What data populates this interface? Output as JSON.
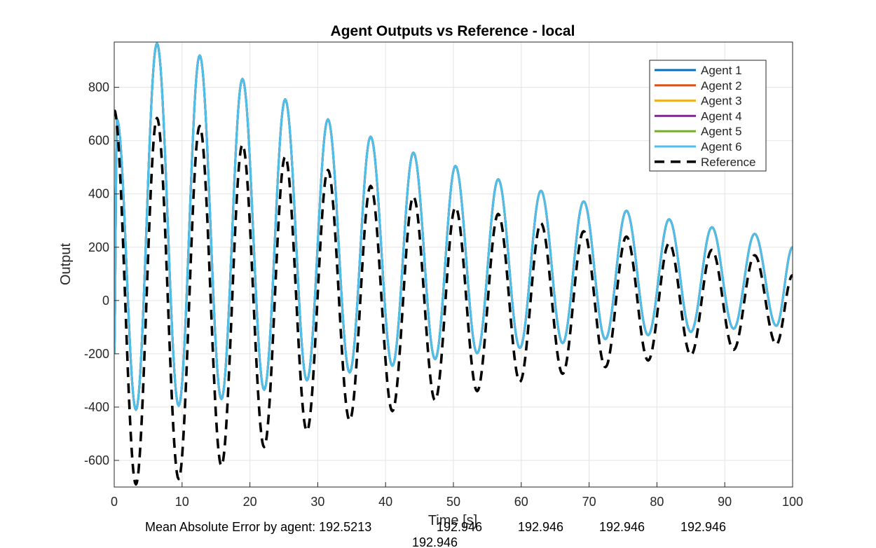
{
  "chart_data": {
    "type": "line",
    "title": "Agent Outputs vs Reference - local",
    "xlabel": "Time [s]",
    "ylabel": "Output",
    "xlim": [
      0,
      100
    ],
    "ylim": [
      -700,
      970
    ],
    "xticks": [
      0,
      10,
      20,
      30,
      40,
      50,
      60,
      70,
      80,
      90,
      100
    ],
    "yticks": [
      -600,
      -400,
      -200,
      0,
      200,
      400,
      600,
      800
    ],
    "grid": true,
    "legend_position": "top-right",
    "series": [
      {
        "name": "Agent 1",
        "color": "#0072BD",
        "style": "solid"
      },
      {
        "name": "Agent 2",
        "color": "#D95319",
        "style": "solid"
      },
      {
        "name": "Agent 3",
        "color": "#EDB120",
        "style": "solid"
      },
      {
        "name": "Agent 4",
        "color": "#7E2F8E",
        "style": "solid"
      },
      {
        "name": "Agent 5",
        "color": "#77AC30",
        "style": "solid"
      },
      {
        "name": "Agent 6",
        "color": "#4DBEEE",
        "style": "solid"
      },
      {
        "name": "Reference",
        "color": "#000000",
        "style": "dashed"
      }
    ],
    "agent_peaks": [
      {
        "t": 0.4,
        "v": 680
      },
      {
        "t": 6.3,
        "v": 965
      },
      {
        "t": 12.6,
        "v": 920
      },
      {
        "t": 18.9,
        "v": 832
      },
      {
        "t": 25.2,
        "v": 755
      },
      {
        "t": 31.5,
        "v": 680
      },
      {
        "t": 37.8,
        "v": 615
      },
      {
        "t": 44.1,
        "v": 555
      },
      {
        "t": 50.3,
        "v": 505
      },
      {
        "t": 56.6,
        "v": 455
      },
      {
        "t": 62.9,
        "v": 412
      },
      {
        "t": 69.2,
        "v": 372
      },
      {
        "t": 75.5,
        "v": 337
      },
      {
        "t": 81.8,
        "v": 305
      },
      {
        "t": 88.1,
        "v": 275
      },
      {
        "t": 94.4,
        "v": 250
      }
    ],
    "agent_troughs": [
      {
        "t": 3.2,
        "v": -410
      },
      {
        "t": 9.5,
        "v": -395
      },
      {
        "t": 15.8,
        "v": -370
      },
      {
        "t": 22.1,
        "v": -335
      },
      {
        "t": 28.4,
        "v": -300
      },
      {
        "t": 34.7,
        "v": -270
      },
      {
        "t": 41.0,
        "v": -245
      },
      {
        "t": 47.3,
        "v": -220
      },
      {
        "t": 53.5,
        "v": -198
      },
      {
        "t": 59.8,
        "v": -178
      },
      {
        "t": 66.1,
        "v": -160
      },
      {
        "t": 72.4,
        "v": -145
      },
      {
        "t": 78.7,
        "v": -130
      },
      {
        "t": 85.0,
        "v": -118
      },
      {
        "t": 91.3,
        "v": -106
      },
      {
        "t": 97.6,
        "v": -95
      }
    ],
    "reference_peaks": [
      {
        "t": 0.0,
        "v": 715
      },
      {
        "t": 6.3,
        "v": 685
      },
      {
        "t": 12.6,
        "v": 655
      },
      {
        "t": 18.9,
        "v": 585
      },
      {
        "t": 25.2,
        "v": 540
      },
      {
        "t": 31.5,
        "v": 490
      },
      {
        "t": 37.8,
        "v": 430
      },
      {
        "t": 44.1,
        "v": 390
      },
      {
        "t": 50.3,
        "v": 350
      },
      {
        "t": 56.6,
        "v": 325
      },
      {
        "t": 62.9,
        "v": 290
      },
      {
        "t": 69.2,
        "v": 260
      },
      {
        "t": 75.5,
        "v": 240
      },
      {
        "t": 81.8,
        "v": 215
      },
      {
        "t": 88.1,
        "v": 190
      },
      {
        "t": 94.4,
        "v": 170
      }
    ],
    "reference_troughs": [
      {
        "t": 3.2,
        "v": -690
      },
      {
        "t": 9.5,
        "v": -670
      },
      {
        "t": 15.8,
        "v": -620
      },
      {
        "t": 22.1,
        "v": -550
      },
      {
        "t": 28.4,
        "v": -490
      },
      {
        "t": 34.7,
        "v": -450
      },
      {
        "t": 41.0,
        "v": -415
      },
      {
        "t": 47.3,
        "v": -375
      },
      {
        "t": 53.5,
        "v": -340
      },
      {
        "t": 59.8,
        "v": -305
      },
      {
        "t": 66.1,
        "v": -275
      },
      {
        "t": 72.4,
        "v": -250
      },
      {
        "t": 78.7,
        "v": -225
      },
      {
        "t": 85.0,
        "v": -205
      },
      {
        "t": 91.3,
        "v": -185
      },
      {
        "t": 97.6,
        "v": -165
      }
    ],
    "agent_end": {
      "t": 100,
      "v": 200
    },
    "reference_end": {
      "t": 100,
      "v": 95
    },
    "agent_start": {
      "t": 0,
      "v": -200
    }
  },
  "footer": {
    "line1_prefix": "Mean Absolute Error by agent: 192.5213",
    "line1_values": [
      "192.946",
      "192.946",
      "192.946",
      "192.946"
    ],
    "line2": "192.946"
  }
}
